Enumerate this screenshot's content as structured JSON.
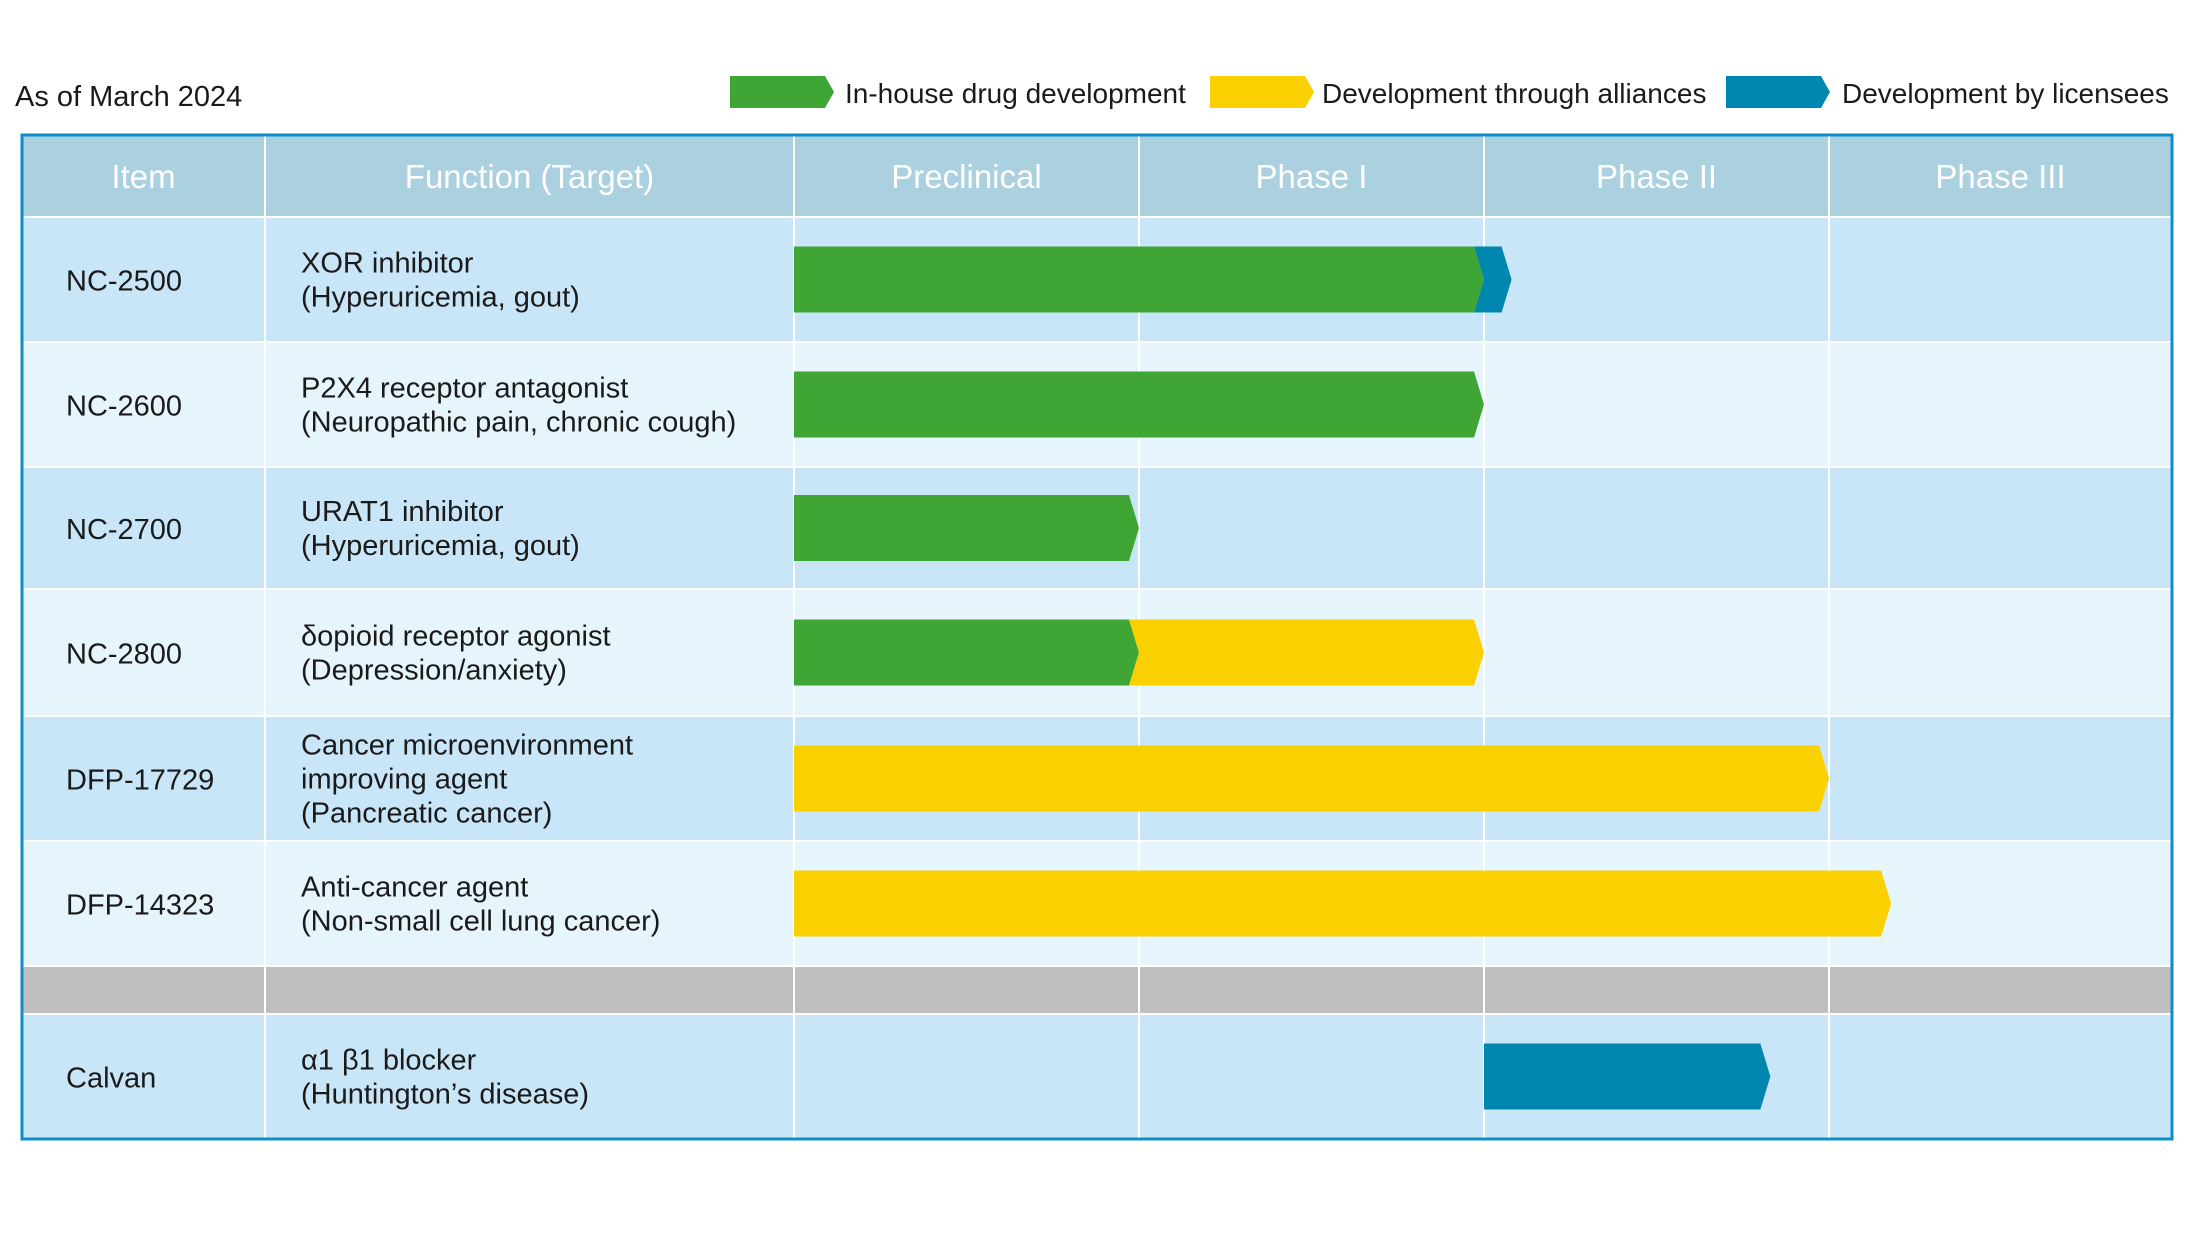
{
  "as_of": "As of March 2024",
  "legend": [
    {
      "label": "In-house drug development",
      "color": "#3fa535",
      "key": "inhouse"
    },
    {
      "label": "Development through alliances",
      "color": "#fbd000",
      "key": "alliance"
    },
    {
      "label": "Development by licensees",
      "color": "#0087b0",
      "key": "licensee"
    }
  ],
  "columns": {
    "item": "Item",
    "function": "Function (Target)",
    "phases": [
      "Preclinical",
      "Phase I",
      "Phase II",
      "Phase III"
    ]
  },
  "colors": {
    "header_bg": "#abd0e0",
    "row_a": "#c8e6f7",
    "row_b": "#e6f4fc",
    "separator": "#bfbfbf",
    "border": "#0f8dc7",
    "header_text": "#ffffff",
    "gridline": "#ffffff"
  },
  "chart_data": {
    "type": "table",
    "phase_scale": "0 = start of Preclinical, 1 = end of Preclinical, 2 = end of Phase I, 3 = end of Phase II, 4 = end of Phase III",
    "rows": [
      {
        "item": "NC-2500",
        "function": [
          "XOR inhibitor",
          "(Hyperuricemia, gout)"
        ],
        "segments": [
          {
            "stage": "inhouse",
            "start": 0,
            "end": 2
          },
          {
            "stage": "licensee",
            "start": 2,
            "end": 2.08
          }
        ]
      },
      {
        "item": "NC-2600",
        "function": [
          "P2X4 receptor antagonist",
          "(Neuropathic pain, chronic cough)"
        ],
        "segments": [
          {
            "stage": "inhouse",
            "start": 0,
            "end": 2
          }
        ]
      },
      {
        "item": "NC-2700",
        "function": [
          "URAT1 inhibitor",
          "(Hyperuricemia, gout)"
        ],
        "segments": [
          {
            "stage": "inhouse",
            "start": 0,
            "end": 1
          }
        ]
      },
      {
        "item": "NC-2800",
        "function": [
          "δopioid receptor agonist",
          "(Depression/anxiety)"
        ],
        "segments": [
          {
            "stage": "inhouse",
            "start": 0,
            "end": 1
          },
          {
            "stage": "alliance",
            "start": 1,
            "end": 2
          }
        ]
      },
      {
        "item": "DFP-17729",
        "function": [
          "Cancer microenvironment",
          "improving agent",
          "(Pancreatic cancer)"
        ],
        "segments": [
          {
            "stage": "alliance",
            "start": 0,
            "end": 3
          }
        ]
      },
      {
        "item": "DFP-14323",
        "function": [
          "Anti-cancer agent",
          "(Non-small cell lung cancer)"
        ],
        "segments": [
          {
            "stage": "alliance",
            "start": 0,
            "end": 3.18
          }
        ]
      },
      {
        "separator": true
      },
      {
        "item": "Calvan",
        "function": [
          "α1 β1 blocker",
          "(Huntington’s disease)"
        ],
        "segments": [
          {
            "stage": "licensee",
            "start": 2,
            "end": 2.83
          }
        ]
      }
    ]
  }
}
